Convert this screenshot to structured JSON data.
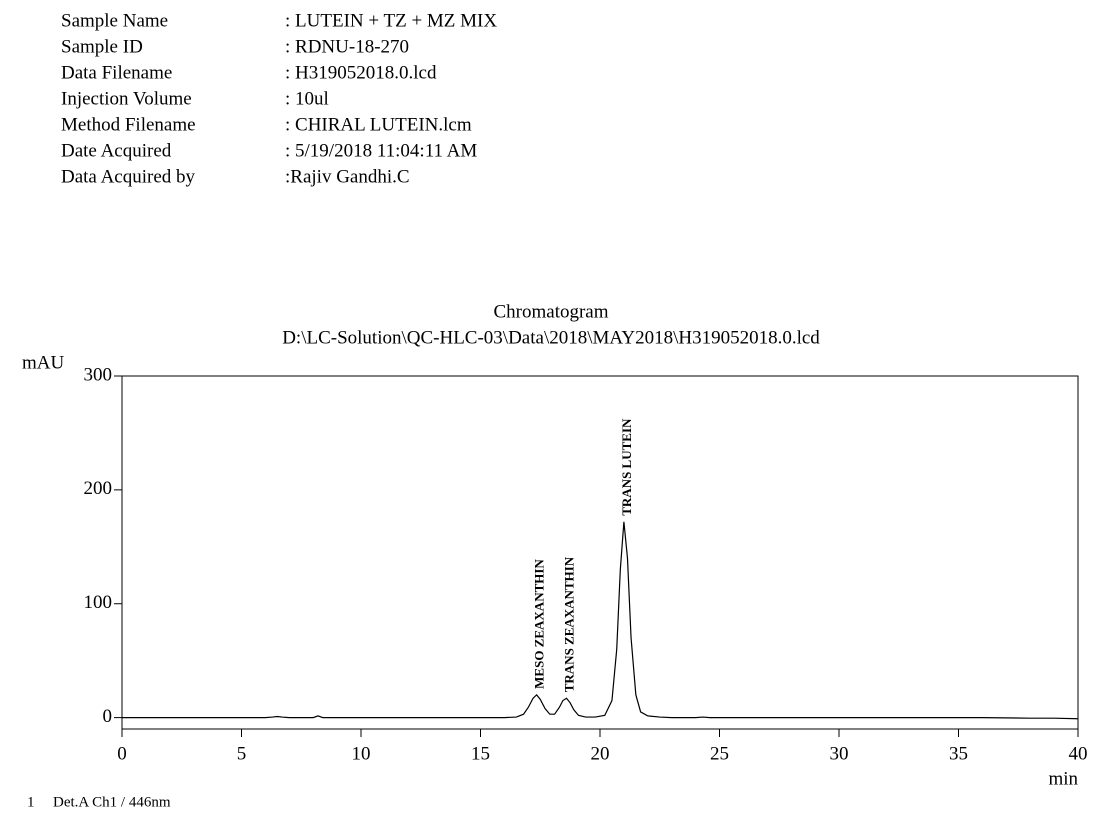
{
  "header": {
    "fields": [
      {
        "label": "Sample Name",
        "value": ": LUTEIN + TZ + MZ MIX"
      },
      {
        "label": "Sample ID",
        "value": ": RDNU-18-270"
      },
      {
        "label": "Data Filename",
        "value": ": H319052018.0.lcd"
      },
      {
        "label": "Injection Volume",
        "value": ": 10ul"
      },
      {
        "label": "Method Filename",
        "value": ": CHIRAL LUTEIN.lcm"
      },
      {
        "label": "Date Acquired",
        "value": ": 5/19/2018 11:04:11 AM"
      },
      {
        "label": "Data Acquired by",
        "value": ":Rajiv Gandhi.C"
      }
    ]
  },
  "chart_data": {
    "type": "line",
    "title": "Chromatogram",
    "subtitle": "D:\\LC-Solution\\QC-HLC-03\\Data\\2018\\MAY2018\\H319052018.0.lcd",
    "y_label": "mAU",
    "x_label": "min",
    "xlim": [
      0,
      40
    ],
    "xticks": [
      0,
      5,
      10,
      15,
      20,
      25,
      30,
      35,
      40
    ],
    "ylim": [
      -10,
      300
    ],
    "yticks": [
      0,
      100,
      200,
      300
    ],
    "x": [
      0,
      1,
      2,
      3,
      4,
      5,
      6,
      6.3,
      6.5,
      6.7,
      7,
      8,
      8.2,
      8.4,
      9,
      10,
      11,
      12,
      13,
      14,
      15,
      16,
      16.5,
      16.8,
      17.0,
      17.2,
      17.35,
      17.5,
      17.7,
      17.9,
      18.1,
      18.3,
      18.45,
      18.6,
      18.75,
      18.9,
      19.1,
      19.4,
      19.8,
      20.2,
      20.5,
      20.7,
      20.85,
      21.0,
      21.15,
      21.3,
      21.5,
      21.7,
      22,
      22.5,
      23,
      24,
      24.3,
      24.6,
      25,
      27,
      30,
      33,
      36,
      38,
      39,
      40
    ],
    "series": [
      {
        "name": "Det.A Ch1 / 446nm",
        "color": "#000000",
        "values": [
          0,
          0,
          0,
          0,
          0,
          0,
          0,
          0.5,
          1,
          0.5,
          0,
          0,
          1.5,
          0,
          0,
          0,
          0,
          0,
          0,
          0,
          0,
          0,
          0.5,
          3,
          9,
          17,
          20,
          16,
          8,
          3,
          3,
          9,
          15,
          17,
          13,
          7,
          2,
          0.5,
          0.5,
          2,
          15,
          60,
          130,
          172,
          140,
          70,
          20,
          5,
          1.5,
          0.5,
          0,
          0,
          0.5,
          0,
          0,
          0,
          0,
          0,
          0,
          -0.5,
          -0.5,
          -1
        ]
      }
    ],
    "peaks": [
      {
        "label": "MESO ZEAXANTHIN",
        "x": 17.35,
        "y": 20
      },
      {
        "label": "TRANS ZEAXANTHIN",
        "x": 18.6,
        "y": 17
      },
      {
        "label": "TRANS LUTEIN",
        "x": 21.0,
        "y": 172
      }
    ],
    "footer_index": "1"
  }
}
